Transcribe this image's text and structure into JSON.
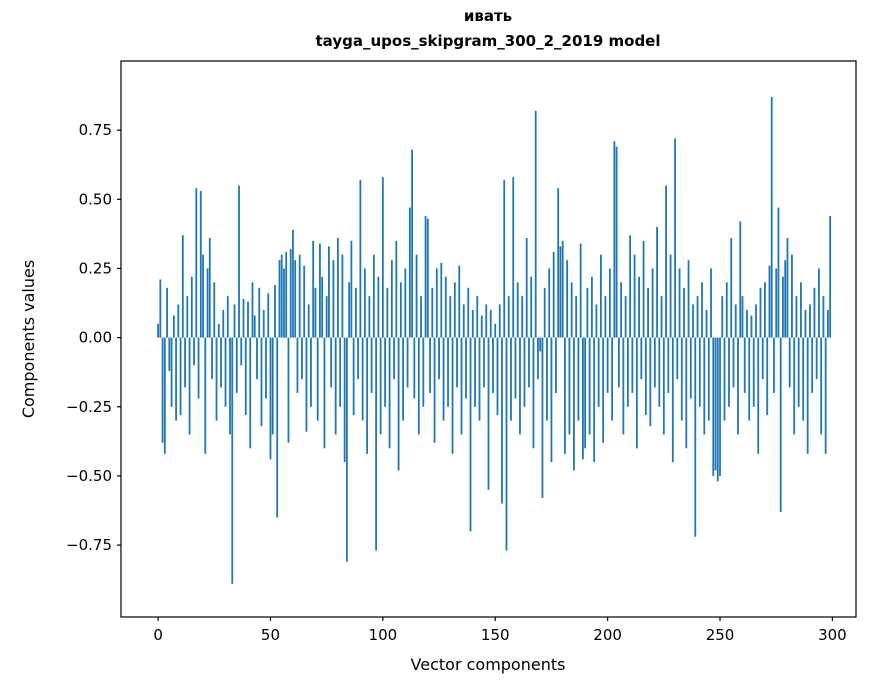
{
  "figure": {
    "title_line1": "ивать",
    "title_line2": "tayga_upos_skipgram_300_2_2019 model",
    "xlabel": "Vector components",
    "ylabel": "Components values"
  },
  "chart_data": {
    "type": "bar",
    "title": "ивать — tayga_upos_skipgram_300_2_2019 model",
    "xlabel": "Vector components",
    "ylabel": "Components values",
    "bar_color": "#1f77b4",
    "grid": false,
    "legend": false,
    "xlim": [
      -16.5,
      310.5
    ],
    "ylim": [
      -1.01,
      1.0
    ],
    "xticks": [
      0,
      50,
      100,
      150,
      200,
      250,
      300
    ],
    "yticks": [
      -0.75,
      -0.5,
      -0.25,
      0,
      0.25,
      0.5,
      0.75
    ],
    "values": [
      0.05,
      0.21,
      -0.38,
      -0.42,
      0.18,
      -0.12,
      -0.25,
      0.08,
      -0.3,
      0.12,
      -0.28,
      0.37,
      -0.18,
      0.15,
      -0.35,
      0.22,
      -0.1,
      0.54,
      -0.22,
      0.53,
      0.3,
      -0.42,
      0.25,
      0.36,
      -0.15,
      0.2,
      -0.3,
      0.05,
      -0.18,
      0.1,
      -0.25,
      0.15,
      -0.35,
      -0.89,
      0.12,
      -0.2,
      0.55,
      -0.1,
      0.14,
      -0.28,
      0.13,
      -0.4,
      0.2,
      0.08,
      -0.15,
      0.18,
      -0.32,
      0.1,
      -0.22,
      0.16,
      -0.44,
      -0.35,
      0.19,
      -0.65,
      0.28,
      0.3,
      0.25,
      0.31,
      -0.38,
      0.32,
      0.39,
      0.28,
      -0.2,
      0.3,
      -0.15,
      0.26,
      -0.34,
      0.12,
      -0.25,
      0.35,
      0.18,
      -0.3,
      0.34,
      0.22,
      -0.4,
      0.15,
      0.33,
      -0.18,
      0.28,
      -0.35,
      0.36,
      -0.25,
      0.3,
      -0.45,
      -0.81,
      0.2,
      0.35,
      -0.28,
      0.18,
      -0.15,
      0.57,
      -0.3,
      0.25,
      -0.42,
      0.15,
      -0.2,
      0.3,
      -0.77,
      0.22,
      -0.35,
      0.58,
      -0.25,
      0.18,
      -0.4,
      0.28,
      -0.15,
      0.35,
      -0.48,
      0.2,
      -0.3,
      0.25,
      -0.18,
      0.47,
      0.68,
      -0.22,
      0.3,
      -0.35,
      0.15,
      -0.25,
      0.44,
      0.43,
      -0.2,
      0.18,
      -0.38,
      0.25,
      -0.15,
      0.27,
      -0.3,
      0.22,
      -0.25,
      0.15,
      -0.42,
      0.2,
      -0.18,
      0.26,
      -0.35,
      0.12,
      -0.22,
      0.18,
      -0.7,
      0.1,
      -0.25,
      0.15,
      -0.3,
      0.08,
      -0.18,
      0.12,
      -0.55,
      0.1,
      -0.2,
      0.05,
      -0.28,
      0.12,
      -0.6,
      0.57,
      -0.77,
      0.15,
      -0.3,
      0.58,
      -0.22,
      0.2,
      -0.35,
      0.15,
      -0.25,
      0.36,
      -0.18,
      0.22,
      -0.4,
      0.82,
      -0.15,
      -0.05,
      -0.58,
      0.18,
      -0.3,
      0.25,
      -0.45,
      0.31,
      -0.2,
      0.54,
      0.33,
      0.35,
      -0.42,
      0.28,
      -0.35,
      0.2,
      -0.48,
      0.15,
      -0.3,
      0.34,
      -0.44,
      -0.4,
      0.18,
      -0.35,
      0.22,
      -0.45,
      0.12,
      -0.25,
      0.3,
      -0.38,
      0.15,
      -0.2,
      0.25,
      -0.3,
      0.71,
      0.69,
      -0.18,
      0.2,
      -0.35,
      0.15,
      -0.25,
      0.37,
      -0.2,
      0.3,
      -0.4,
      0.22,
      -0.15,
      0.35,
      -0.28,
      0.18,
      -0.32,
      0.25,
      -0.18,
      0.4,
      -0.25,
      0.15,
      -0.35,
      0.55,
      -0.2,
      0.3,
      -0.45,
      0.72,
      -0.15,
      0.25,
      -0.3,
      0.18,
      -0.4,
      0.28,
      -0.22,
      0.12,
      -0.72,
      0.15,
      -0.25,
      0.2,
      -0.35,
      0.1,
      -0.3,
      0.25,
      -0.5,
      -0.48,
      -0.52,
      -0.5,
      0.15,
      -0.3,
      0.2,
      -0.25,
      0.36,
      -0.18,
      0.12,
      -0.35,
      0.42,
      0.15,
      -0.2,
      0.1,
      -0.3,
      0.08,
      -0.25,
      0.12,
      -0.42,
      0.18,
      -0.15,
      0.2,
      -0.28,
      0.26,
      0.87,
      -0.2,
      0.25,
      0.47,
      -0.63,
      0.22,
      0.28,
      0.36,
      -0.18,
      0.3,
      -0.35,
      0.15,
      -0.25,
      0.2,
      -0.3,
      0.1,
      -0.42,
      0.12,
      -0.2,
      0.18,
      -0.15,
      0.25,
      -0.35,
      0.15,
      -0.42,
      0.1,
      0.44
    ]
  }
}
